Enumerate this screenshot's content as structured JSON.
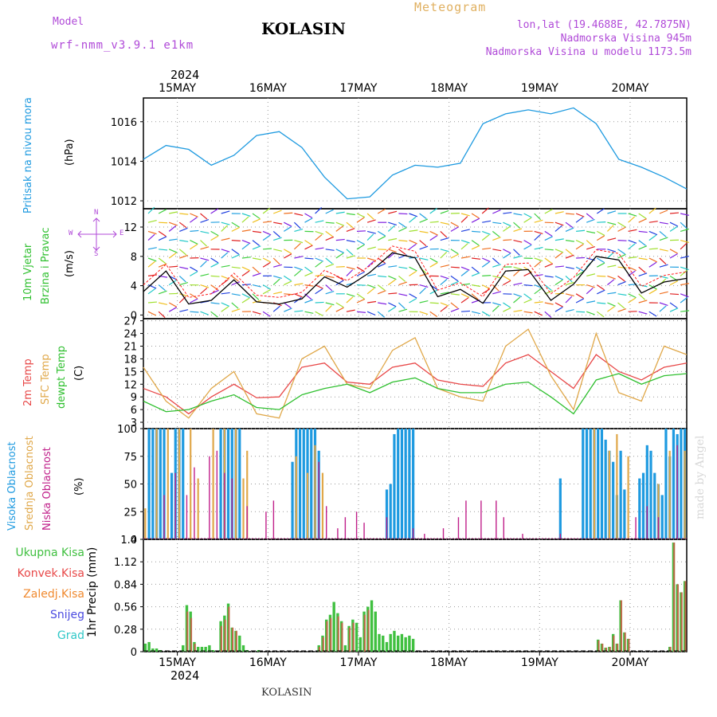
{
  "header": {
    "model_label": "Model",
    "model_name": "wrf-nmm_v3.9.1  e1km",
    "title": "KOLASIN",
    "meteogram": "Meteogram",
    "lonlat": "lon,lat (19.4688E, 42.7875N)",
    "altitude": "Nadmorska Visina 945m",
    "model_altitude": "Nadmorska Visina u modelu 1173.5m",
    "footer": "KOLASIN",
    "watermark": "made by Angel",
    "year": "2024"
  },
  "days": [
    "15MAY",
    "16MAY",
    "17MAY",
    "18MAY",
    "19MAY",
    "20MAY"
  ],
  "colors": {
    "pressure": "#1e9ae0",
    "t2m": "#e84848",
    "sfc": "#e0a84a",
    "dewpt": "#30c030",
    "high_cloud": "#1e9ae0",
    "mid_cloud": "#e0a84a",
    "low_cloud": "#c0208a",
    "precip_total": "#40c040",
    "precip_conv": "#e84848",
    "wind_black": "#000000",
    "wind_red": "#ff2020"
  },
  "panels": {
    "pressure": {
      "label": "Pritisak na nivou mora",
      "unit": "(hPa)"
    },
    "wind": {
      "label1": "10m Vjetar",
      "label2": "Brzina i Pravac",
      "unit": "(m/s)",
      "compass_n": "N",
      "compass_s": "S",
      "compass_w": "W",
      "compass_e": "E"
    },
    "temp": {
      "label1": "2m Temp",
      "label2": "SFC Temp",
      "label3": "dewpt Temp",
      "unit": "(C)"
    },
    "cloud": {
      "label1": "Visoka Oblacnost",
      "label2": "Srednja Oblacnost",
      "label3": "Niska Oblacnost",
      "unit": "(%)"
    },
    "precip": {
      "label": "1hr Precip",
      "unit": "(mm)",
      "legend": [
        "Ukupna Kisa",
        "Konvek.Kisa",
        "Zaledj.Kisa",
        "Snijeg",
        "Grad"
      ],
      "legend_colors": [
        "#40c040",
        "#e84848",
        "#f08a30",
        "#4a4ae0",
        "#30c8c8"
      ]
    }
  },
  "chart_data": [
    {
      "type": "line",
      "name": "pressure",
      "x_range": [
        0,
        144
      ],
      "ylim": [
        1011.6,
        1017.2
      ],
      "yticks": [
        1012,
        1014,
        1016
      ],
      "x": [
        0,
        6,
        12,
        18,
        24,
        30,
        36,
        42,
        48,
        54,
        60,
        66,
        72,
        78,
        84,
        90,
        96,
        102,
        108,
        114,
        120,
        126,
        132,
        138,
        144
      ],
      "values": [
        1014.1,
        1014.8,
        1014.6,
        1013.8,
        1014.3,
        1015.3,
        1015.5,
        1014.7,
        1013.2,
        1012.1,
        1012.2,
        1013.3,
        1013.8,
        1013.7,
        1013.9,
        1015.9,
        1016.4,
        1016.6,
        1016.4,
        1016.7,
        1015.9,
        1014.1,
        1013.7,
        1013.2,
        1012.6
      ]
    },
    {
      "type": "line",
      "name": "wind_speed",
      "x_range": [
        0,
        144
      ],
      "ylim": [
        -0.5,
        14.5
      ],
      "yticks": [
        0,
        4,
        8,
        12
      ],
      "x": [
        0,
        6,
        12,
        18,
        24,
        30,
        36,
        42,
        48,
        54,
        60,
        66,
        72,
        78,
        84,
        90,
        96,
        102,
        108,
        114,
        120,
        126,
        132,
        138,
        144
      ],
      "values": [
        3.2,
        6.0,
        1.5,
        2.0,
        4.8,
        1.8,
        1.5,
        2.2,
        5.2,
        3.8,
        5.8,
        8.5,
        7.8,
        2.5,
        3.5,
        1.6,
        6.0,
        6.2,
        2.0,
        4.2,
        8.0,
        7.5,
        3.0,
        4.5,
        5.0
      ]
    },
    {
      "type": "line",
      "name": "temperature",
      "x_range": [
        0,
        144
      ],
      "ylim": [
        1.5,
        27.5
      ],
      "yticks": [
        3,
        6,
        9,
        12,
        15,
        18,
        21,
        24,
        27
      ],
      "x": [
        0,
        6,
        12,
        18,
        24,
        30,
        36,
        42,
        48,
        54,
        60,
        66,
        72,
        78,
        84,
        90,
        96,
        102,
        108,
        114,
        120,
        126,
        132,
        138,
        144
      ],
      "series": [
        {
          "name": "2m Temp",
          "values": [
            11,
            9,
            5,
            9,
            12,
            8.8,
            9,
            16,
            17,
            12.5,
            12,
            16,
            17,
            13,
            12,
            11.5,
            17,
            19,
            15,
            11,
            19,
            15,
            13,
            16,
            17
          ]
        },
        {
          "name": "SFC Temp",
          "values": [
            16,
            8,
            4,
            11,
            15,
            5,
            4,
            18,
            21,
            12,
            11,
            20,
            23,
            11,
            9,
            8,
            21,
            25,
            14,
            6,
            24,
            10,
            8,
            21,
            19
          ]
        },
        {
          "name": "dewpt Temp",
          "values": [
            8,
            5.5,
            6,
            8,
            9.5,
            6.5,
            6,
            9.5,
            11,
            12,
            10,
            12.5,
            13.5,
            11,
            10,
            10,
            12,
            12.5,
            9,
            5,
            13,
            14.5,
            12,
            14,
            14.5
          ]
        }
      ]
    },
    {
      "type": "bar",
      "name": "cloudiness",
      "x_range": [
        0,
        144
      ],
      "ylim": [
        0,
        100
      ],
      "yticks": [
        0,
        25,
        50,
        75,
        100
      ],
      "series": [
        {
          "name": "Visoka Oblacnost",
          "x": [
            1,
            2,
            3,
            4,
            5,
            7,
            8,
            9,
            10,
            20,
            21,
            22,
            23,
            24,
            25,
            39,
            40,
            41,
            42,
            43,
            44,
            45,
            46,
            64,
            65,
            66,
            67,
            68,
            69,
            70,
            71,
            110,
            116,
            117,
            118,
            119,
            120,
            121,
            122,
            123,
            124,
            125,
            126,
            127,
            131,
            132,
            133,
            134,
            135,
            136,
            137,
            138,
            139,
            140,
            141,
            142,
            143
          ],
          "values": [
            100,
            100,
            100,
            100,
            100,
            60,
            100,
            100,
            100,
            100,
            100,
            100,
            100,
            100,
            100,
            70,
            100,
            100,
            100,
            100,
            100,
            100,
            80,
            45,
            50,
            95,
            100,
            100,
            100,
            100,
            100,
            55,
            100,
            100,
            100,
            100,
            100,
            100,
            90,
            80,
            70,
            40,
            80,
            45,
            55,
            60,
            85,
            80,
            60,
            50,
            40,
            100,
            75,
            100,
            95,
            100,
            100
          ]
        },
        {
          "name": "Srednja Oblacnost",
          "x": [
            0,
            3,
            6,
            9,
            12,
            14,
            18,
            21,
            24,
            26,
            27,
            40,
            43,
            45,
            47,
            119,
            123,
            125,
            128,
            136,
            139,
            143
          ],
          "values": [
            28,
            100,
            100,
            100,
            100,
            55,
            100,
            100,
            100,
            55,
            80,
            75,
            60,
            85,
            60,
            100,
            80,
            95,
            75,
            50,
            80,
            80
          ]
        },
        {
          "name": "Niska Oblacnost",
          "x": [
            5,
            8,
            11,
            13,
            17,
            19,
            21,
            23,
            27,
            32,
            34,
            46,
            48,
            51,
            53,
            56,
            58,
            64,
            71,
            74,
            79,
            83,
            85,
            89,
            93,
            95,
            100,
            110,
            130,
            133,
            136,
            141
          ],
          "values": [
            40,
            60,
            40,
            65,
            75,
            80,
            60,
            55,
            30,
            25,
            35,
            70,
            30,
            10,
            20,
            25,
            15,
            20,
            10,
            5,
            10,
            20,
            35,
            35,
            35,
            20,
            5,
            5,
            20,
            30,
            20,
            85
          ]
        }
      ]
    },
    {
      "type": "bar",
      "name": "precipitation",
      "x_range": [
        0,
        144
      ],
      "ylim": [
        0,
        1.4
      ],
      "yticks": [
        0,
        0.28,
        0.56,
        0.84,
        1.12,
        1.4
      ],
      "series": [
        {
          "name": "Ukupna Kisa",
          "x": [
            0,
            1,
            2,
            3,
            4,
            10,
            11,
            12,
            13,
            14,
            15,
            16,
            17,
            18,
            20,
            21,
            22,
            23,
            24,
            25,
            26,
            27,
            30,
            46,
            47,
            48,
            49,
            50,
            51,
            52,
            53,
            54,
            55,
            56,
            57,
            58,
            59,
            60,
            61,
            62,
            63,
            64,
            65,
            66,
            67,
            68,
            69,
            70,
            71,
            120,
            121,
            122,
            123,
            124,
            125,
            126,
            127,
            128,
            139,
            140,
            141,
            142,
            143
          ],
          "values": [
            0.1,
            0.12,
            0.04,
            0.04,
            0.02,
            0.08,
            0.58,
            0.5,
            0.12,
            0.06,
            0.06,
            0.06,
            0.08,
            0.02,
            0.38,
            0.45,
            0.6,
            0.3,
            0.26,
            0.2,
            0.08,
            0.02,
            0.02,
            0.08,
            0.2,
            0.4,
            0.46,
            0.62,
            0.48,
            0.38,
            0.08,
            0.32,
            0.4,
            0.36,
            0.18,
            0.5,
            0.56,
            0.64,
            0.5,
            0.22,
            0.2,
            0.12,
            0.22,
            0.26,
            0.2,
            0.22,
            0.18,
            0.2,
            0.16,
            0.15,
            0.1,
            0.05,
            0.06,
            0.22,
            0.1,
            0.64,
            0.24,
            0.16,
            0.06,
            1.36,
            0.84,
            0.74,
            0.88
          ]
        },
        {
          "name": "Konvek.Kisa",
          "x": [
            11,
            12,
            13,
            20,
            21,
            22,
            23,
            24,
            46,
            47,
            48,
            49,
            51,
            52,
            54,
            55,
            58,
            59,
            120,
            121,
            122,
            123,
            124,
            125,
            126,
            127,
            128,
            139,
            140,
            141,
            142,
            143
          ],
          "values": [
            0.5,
            0.42,
            0.1,
            0.32,
            0.4,
            0.56,
            0.3,
            0.26,
            0.06,
            0.18,
            0.38,
            0.42,
            0.44,
            0.36,
            0.3,
            0.36,
            0.46,
            0.52,
            0.14,
            0.1,
            0.05,
            0.06,
            0.2,
            0.1,
            0.64,
            0.24,
            0.16,
            0.06,
            1.36,
            0.84,
            0.74,
            0.88
          ]
        }
      ]
    }
  ]
}
